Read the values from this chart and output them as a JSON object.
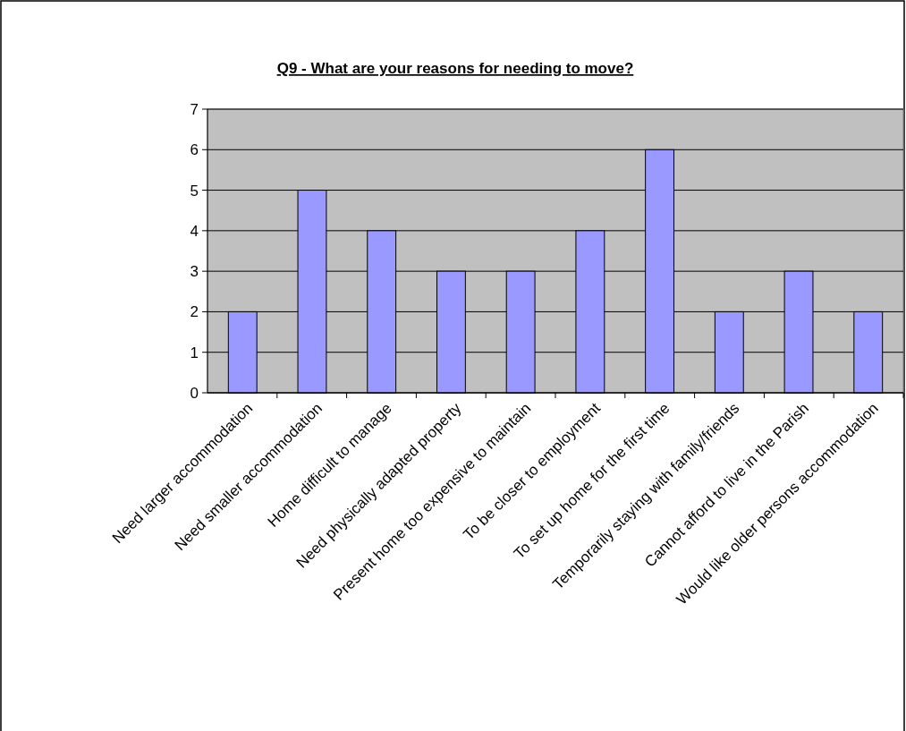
{
  "chart_data": {
    "type": "bar",
    "title": "Q9 - What are your reasons for needing to move?",
    "categories": [
      "Need larger accommodation",
      "Need smaller accommodation",
      "Home difficult to manage",
      "Need physically adapted property",
      "Present home too expensive to maintain",
      "To be closer to employment",
      "To set up home for the first time",
      "Temporarily staying with family/friends",
      "Cannot afford to live in the Parish",
      "Would like older persons accommodation"
    ],
    "values": [
      2,
      5,
      4,
      3,
      3,
      4,
      6,
      2,
      3,
      2
    ],
    "color": "#9999ff",
    "ylim": [
      0,
      7
    ],
    "yticks": [
      0,
      1,
      2,
      3,
      4,
      5,
      6,
      7
    ],
    "grid": "y"
  }
}
